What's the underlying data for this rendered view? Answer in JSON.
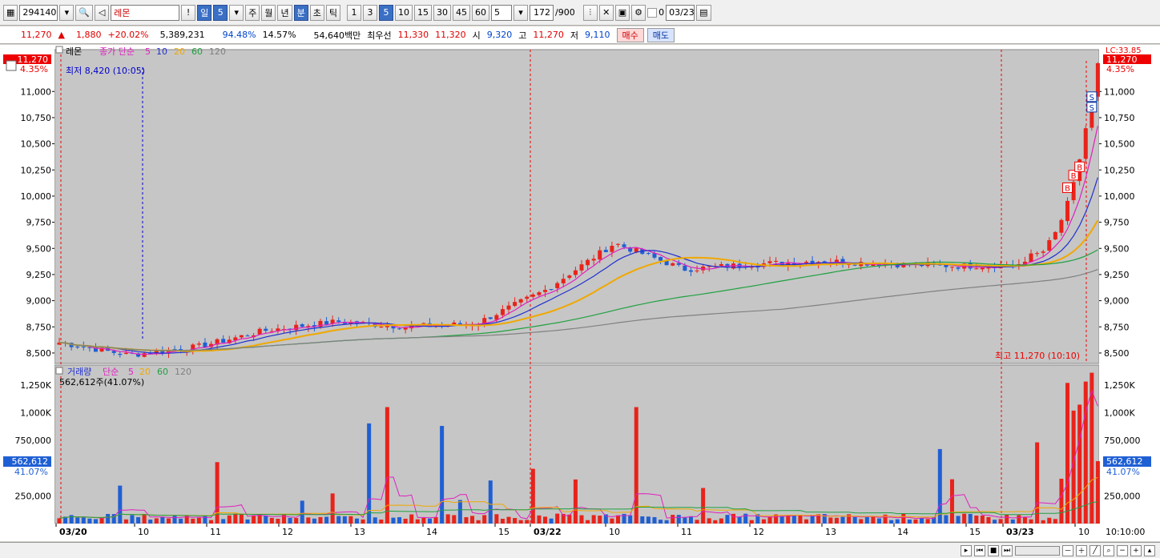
{
  "toolbar": {
    "code": "294140",
    "name": "레몬",
    "bang": "!",
    "periods": [
      "일",
      "주",
      "월",
      "년",
      "분",
      "초",
      "틱"
    ],
    "period_value": "5",
    "minutes": [
      "1",
      "3",
      "5",
      "10",
      "15",
      "30",
      "45",
      "60"
    ],
    "count": "5",
    "range": "172",
    "range_total": "/900",
    "date": "03/23",
    "check_label": "0"
  },
  "quote": {
    "price": "11,270",
    "change": "1,880",
    "change_pct": "+20.02%",
    "volume": "5,389,231",
    "vol_ratio": "94.48%",
    "turnover": "14.57%",
    "amount": "54,640백만",
    "best_label": "최우선",
    "ask": "11,330",
    "bid": "11,320",
    "open_label": "시",
    "open": "9,320",
    "high_label": "고",
    "high": "11,270",
    "low_label": "저",
    "low": "9,110",
    "buy_label": "매수",
    "sell_label": "매도"
  },
  "price_panel": {
    "legend_name": "레몬",
    "legend_ma": "종가 단순",
    "ma_periods": [
      "5",
      "10",
      "20",
      "60",
      "120"
    ],
    "min_label": "최저 8,420 (10:05)",
    "max_label": "최고 11,270 (10:10)",
    "last_price": "11,270",
    "last_pct": "4.35%",
    "lc_label": "LC:33.85",
    "y_ticks": [
      "11,000",
      "10,750",
      "10,500",
      "10,250",
      "10,000",
      "9,750",
      "9,500",
      "9,250",
      "9,000",
      "8,750",
      "8,500"
    ]
  },
  "volume_panel": {
    "legend_name": "거래량",
    "legend_ma": "단순",
    "ma_periods": [
      "5",
      "20",
      "60",
      "120"
    ],
    "info": "562,612주(41.07%)",
    "last_vol": "562,612",
    "last_pct": "41.07%",
    "y_ticks": [
      "1,250K",
      "1,000K",
      "750,000",
      "250,000"
    ]
  },
  "x_axis": {
    "labels": [
      "03/20",
      "10",
      "11",
      "12",
      "13",
      "14",
      "15",
      "03/22",
      "10",
      "11",
      "12",
      "13",
      "14",
      "15",
      "03/23",
      "10"
    ],
    "time": "10:10:00"
  },
  "colors": {
    "up": "#e8231b",
    "down": "#1f5fd4",
    "ma5": "#e020c0",
    "ma10": "#2030d0",
    "ma20": "#f0a800",
    "ma60": "#20a040",
    "ma120": "#808080",
    "panel_bg": "#c6c6c6"
  },
  "chart_data": {
    "type": "candlestick",
    "x": [
      "03/20",
      "10",
      "11",
      "12",
      "13",
      "14",
      "15",
      "03/22",
      "10",
      "11",
      "12",
      "13",
      "14",
      "15",
      "03/23",
      "10"
    ],
    "close_anchors": [
      8600,
      8480,
      8560,
      8720,
      8800,
      8750,
      8780,
      9100,
      9550,
      9300,
      9350,
      9380,
      9350,
      9330,
      9350,
      11270
    ],
    "ylim": [
      8400,
      11400
    ],
    "volume_ylim": [
      0,
      1400000
    ],
    "last_volume": 562612,
    "markers": [
      "B",
      "B",
      "B",
      "S",
      "S"
    ]
  }
}
